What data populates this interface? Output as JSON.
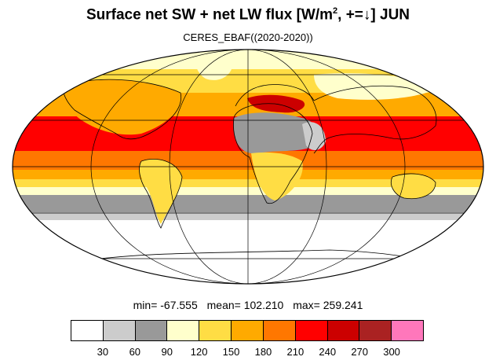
{
  "title": {
    "main": "Surface net SW + net LW flux [W/m",
    "sup": "2",
    "rest": ", +=↓]  JUN"
  },
  "subtitle": "CERES_EBAF((2020-2020))",
  "stats": {
    "min": "min= -67.555",
    "mean": "mean= 102.210",
    "max": "max= 259.241"
  },
  "colorbar": {
    "colors": [
      "#ffffff",
      "#cccccc",
      "#999999",
      "#ffffcc",
      "#ffdd44",
      "#ffaa00",
      "#ff7700",
      "#ff0000",
      "#cc0000",
      "#aa2222",
      "#ff77bb"
    ],
    "labels": [
      "30",
      "60",
      "90",
      "120",
      "150",
      "180",
      "210",
      "240",
      "270",
      "300"
    ]
  },
  "map_colors": {
    "land_fill": "#ffcc44",
    "ocean_base": "#ffaa00",
    "tropical_band": "#ff0000",
    "southern_ocean": "#999999",
    "antarctic": "#ffffff",
    "arctic": "#ffffcc"
  }
}
